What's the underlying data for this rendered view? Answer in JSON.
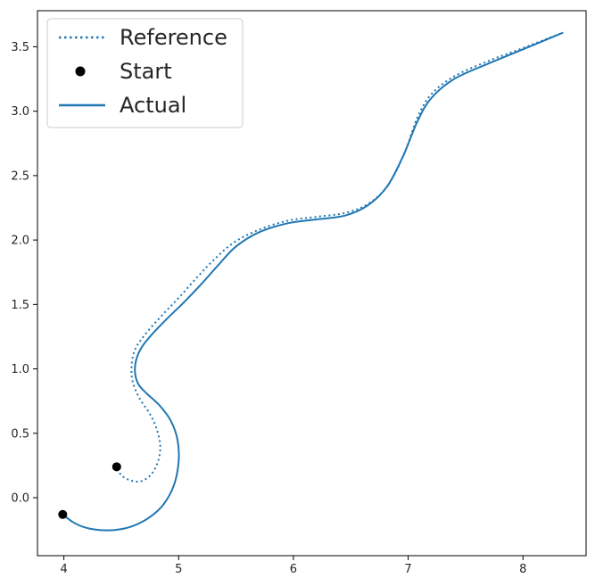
{
  "chart_data": {
    "type": "line",
    "title": "",
    "xlabel": "",
    "ylabel": "",
    "xlim": [
      3.77,
      8.55
    ],
    "ylim": [
      -0.45,
      3.78
    ],
    "xticks": [
      4,
      5,
      6,
      7,
      8
    ],
    "xtick_labels": [
      "4",
      "5",
      "6",
      "7",
      "8"
    ],
    "yticks": [
      0.0,
      0.5,
      1.0,
      1.5,
      2.0,
      2.5,
      3.0,
      3.5
    ],
    "ytick_labels": [
      "0.0",
      "0.5",
      "1.0",
      "1.5",
      "2.0",
      "2.5",
      "3.0",
      "3.5"
    ],
    "grid": false,
    "legend": {
      "placement": "top-left",
      "entries": [
        {
          "label": "Reference",
          "style": "dotted-line",
          "color": "#1f77b4"
        },
        {
          "label": "Start",
          "style": "marker",
          "color": "#000000"
        },
        {
          "label": "Actual",
          "style": "solid-line",
          "color": "#1f77b4"
        }
      ]
    },
    "series": [
      {
        "name": "Reference",
        "style": "dotted",
        "color": "#1f77b4",
        "points": [
          [
            4.46,
            0.22
          ],
          [
            4.52,
            0.16
          ],
          [
            4.6,
            0.13
          ],
          [
            4.68,
            0.13
          ],
          [
            4.76,
            0.18
          ],
          [
            4.82,
            0.28
          ],
          [
            4.84,
            0.4
          ],
          [
            4.81,
            0.53
          ],
          [
            4.75,
            0.65
          ],
          [
            4.66,
            0.77
          ],
          [
            4.6,
            0.9
          ],
          [
            4.59,
            1.02
          ],
          [
            4.62,
            1.15
          ],
          [
            4.72,
            1.28
          ],
          [
            4.86,
            1.42
          ],
          [
            5.0,
            1.55
          ],
          [
            5.15,
            1.7
          ],
          [
            5.3,
            1.84
          ],
          [
            5.48,
            1.98
          ],
          [
            5.7,
            2.08
          ],
          [
            5.95,
            2.15
          ],
          [
            6.2,
            2.18
          ],
          [
            6.45,
            2.21
          ],
          [
            6.65,
            2.28
          ],
          [
            6.82,
            2.42
          ],
          [
            6.97,
            2.68
          ],
          [
            7.08,
            2.95
          ],
          [
            7.2,
            3.13
          ],
          [
            7.4,
            3.27
          ],
          [
            7.7,
            3.39
          ],
          [
            8.0,
            3.49
          ],
          [
            8.35,
            3.61
          ]
        ]
      },
      {
        "name": "Actual",
        "style": "solid",
        "color": "#1f77b4",
        "points": [
          [
            3.99,
            -0.13
          ],
          [
            4.08,
            -0.19
          ],
          [
            4.18,
            -0.23
          ],
          [
            4.3,
            -0.25
          ],
          [
            4.45,
            -0.25
          ],
          [
            4.6,
            -0.22
          ],
          [
            4.75,
            -0.15
          ],
          [
            4.87,
            -0.05
          ],
          [
            4.96,
            0.1
          ],
          [
            5.0,
            0.28
          ],
          [
            4.99,
            0.45
          ],
          [
            4.93,
            0.6
          ],
          [
            4.83,
            0.72
          ],
          [
            4.72,
            0.81
          ],
          [
            4.65,
            0.88
          ],
          [
            4.62,
            0.97
          ],
          [
            4.63,
            1.07
          ],
          [
            4.68,
            1.17
          ],
          [
            4.77,
            1.27
          ],
          [
            4.9,
            1.39
          ],
          [
            5.05,
            1.52
          ],
          [
            5.2,
            1.66
          ],
          [
            5.35,
            1.81
          ],
          [
            5.5,
            1.95
          ],
          [
            5.7,
            2.06
          ],
          [
            5.95,
            2.13
          ],
          [
            6.2,
            2.16
          ],
          [
            6.45,
            2.19
          ],
          [
            6.65,
            2.27
          ],
          [
            6.82,
            2.42
          ],
          [
            6.96,
            2.66
          ],
          [
            7.08,
            2.92
          ],
          [
            7.2,
            3.1
          ],
          [
            7.4,
            3.25
          ],
          [
            7.7,
            3.37
          ],
          [
            8.0,
            3.48
          ],
          [
            8.35,
            3.61
          ]
        ]
      },
      {
        "name": "Start",
        "style": "marker",
        "color": "#000000",
        "points": [
          [
            4.46,
            0.24
          ],
          [
            3.99,
            -0.13
          ]
        ]
      }
    ]
  }
}
